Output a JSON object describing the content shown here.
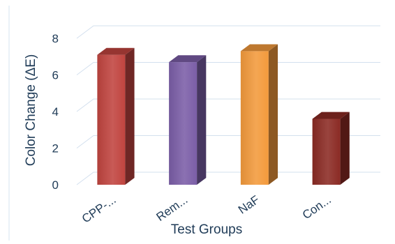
{
  "chart_data": {
    "type": "bar",
    "style": "3d-column",
    "categories": [
      "CPP-...",
      "Rem...",
      "NaF",
      "Con..."
    ],
    "values": [
      7.1,
      6.7,
      7.3,
      3.6
    ],
    "colors": [
      "#c0443f",
      "#7b5ea7",
      "#f39a3c",
      "#8b2a24"
    ],
    "xlabel": "Test Groups",
    "ylabel": "Color Change (ΔE)",
    "ylim": [
      0,
      8
    ],
    "yticks": [
      0,
      2,
      4,
      6,
      8
    ],
    "grid": true,
    "legend": "none"
  }
}
